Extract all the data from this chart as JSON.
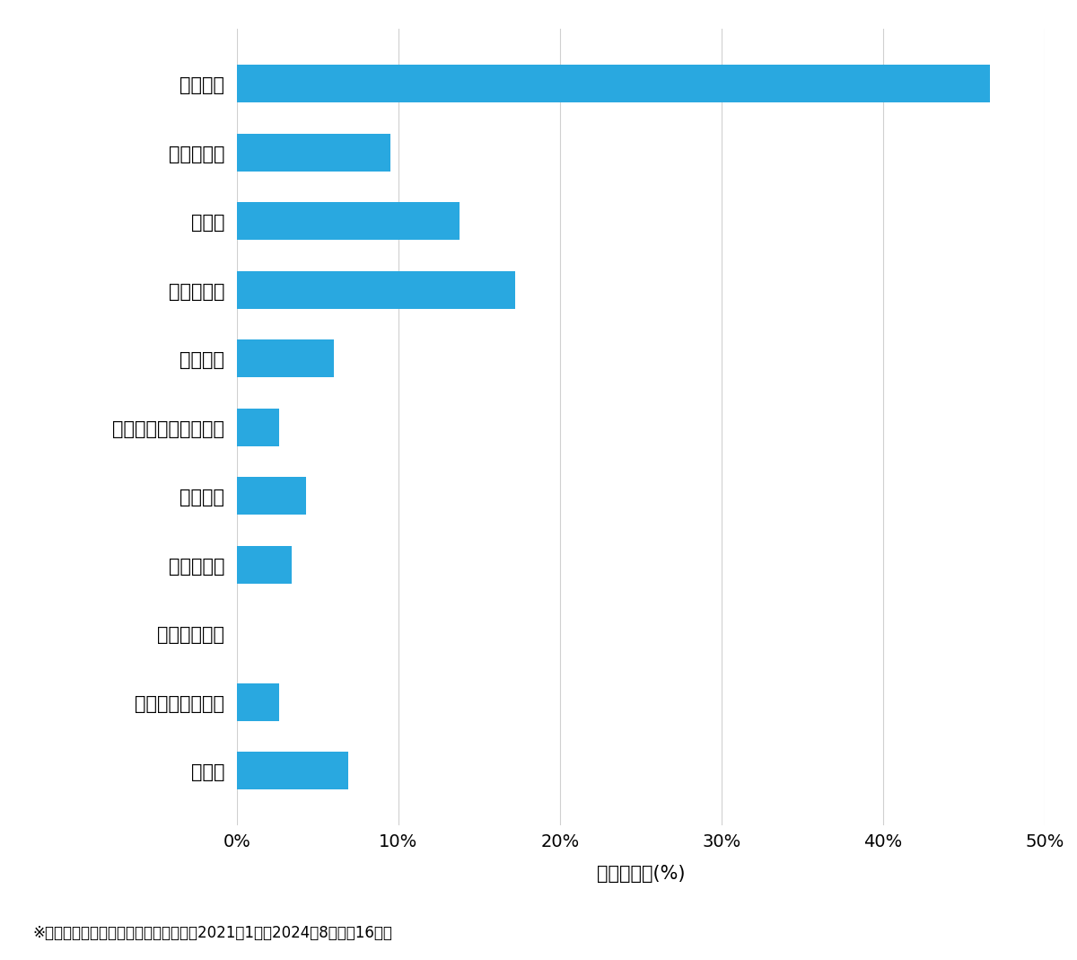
{
  "categories": [
    "その他",
    "スーツケース開鍵",
    "その他鍵作成",
    "玄関鍵作成",
    "金庫開鍵",
    "イモビ付国産車鍵作成",
    "車鍵作成",
    "その他開鍵",
    "車開鍵",
    "玄関鍵交換",
    "玄関開鍵"
  ],
  "values": [
    6.9,
    2.6,
    0.0,
    3.4,
    4.3,
    2.6,
    6.0,
    17.2,
    13.8,
    9.5,
    46.6
  ],
  "bar_color": "#29a8e0",
  "xlabel": "件数の割合(%)",
  "xlim": [
    0,
    50
  ],
  "xticks": [
    0,
    10,
    20,
    30,
    40,
    50
  ],
  "xticklabels": [
    "0%",
    "10%",
    "20%",
    "30%",
    "40%",
    "50%"
  ],
  "footnote": "※弊社受付の案件を対象に集計（期間：2021年1月～2024年8月、記16件）",
  "background_color": "#ffffff",
  "grid_color": "#d0d0d0",
  "label_fontsize": 15,
  "tick_fontsize": 14,
  "footnote_fontsize": 12,
  "xlabel_fontsize": 15,
  "bar_height": 0.55
}
